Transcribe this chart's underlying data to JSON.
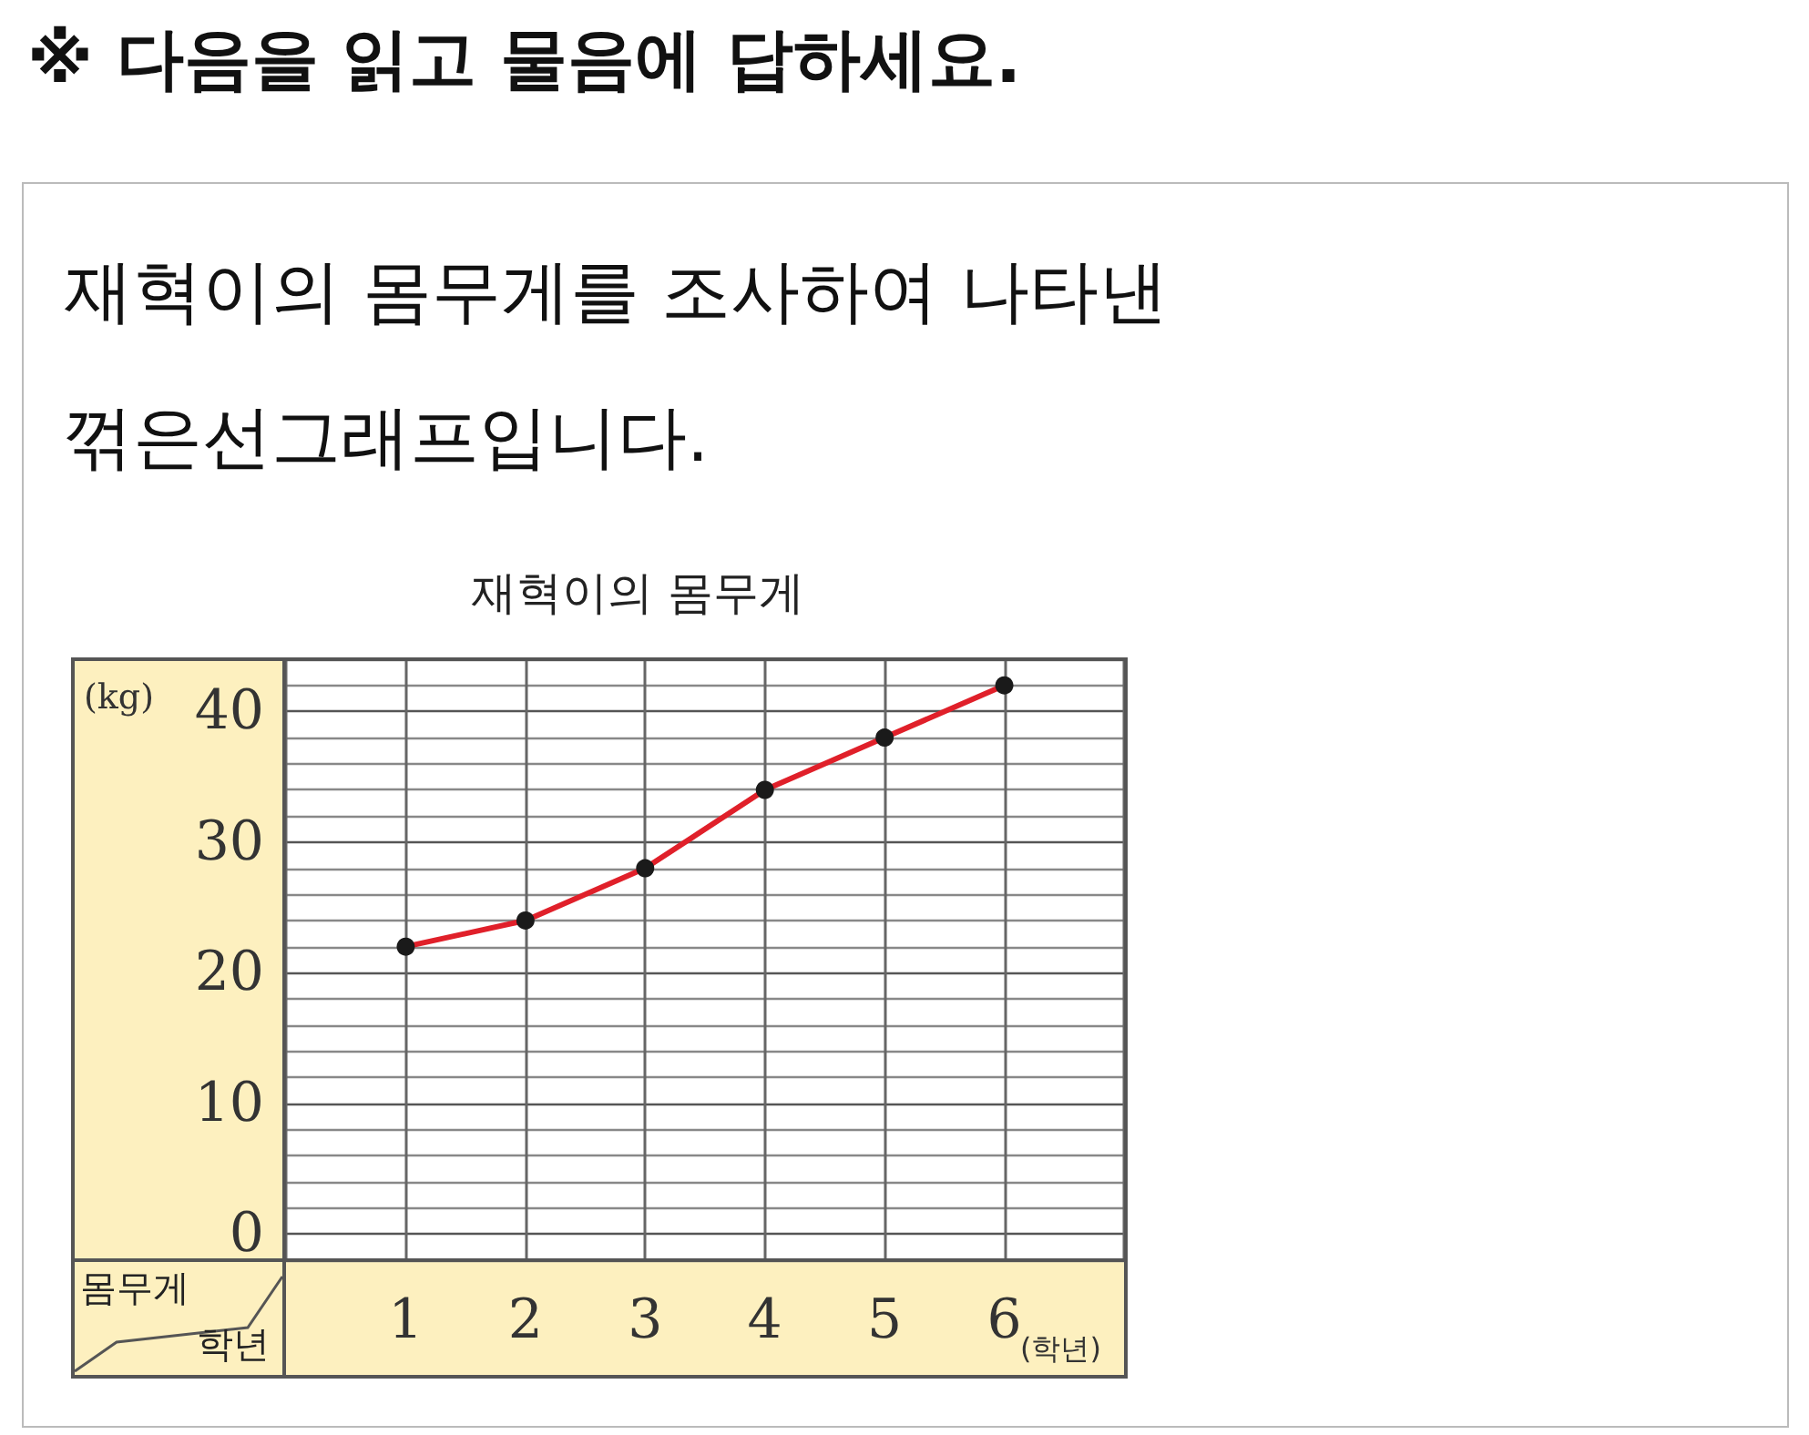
{
  "chart_data": {
    "type": "line",
    "title": "재혁이의 몸무게",
    "xlabel": "(학년)",
    "ylabel": "(kg)",
    "annotations": [
      "※ 다음을 읽고 물음에 답하세요.",
      "재혁이의 몸무게를 조사하여 나타낸 꺾은선그래프입니다.",
      "몸무게",
      "학년"
    ],
    "categories": [
      "1",
      "2",
      "3",
      "4",
      "5",
      "6"
    ],
    "series": [
      {
        "color": "#e0202a",
        "values": [
          22,
          24,
          28,
          34,
          38,
          42
        ]
      }
    ],
    "ylim": [
      -2,
      44
    ],
    "yticks": [
      {
        "value": 0,
        "label": "0"
      },
      {
        "value": 2,
        "label": null
      },
      {
        "value": 4,
        "label": null
      },
      {
        "value": 6,
        "label": null
      },
      {
        "value": 8,
        "label": null
      },
      {
        "value": 10,
        "label": "10"
      },
      {
        "value": 12,
        "label": null
      },
      {
        "value": 14,
        "label": null
      },
      {
        "value": 16,
        "label": null
      },
      {
        "value": 18,
        "label": null
      },
      {
        "value": 20,
        "label": "20"
      },
      {
        "value": 22,
        "label": null
      },
      {
        "value": 24,
        "label": null
      },
      {
        "value": 26,
        "label": null
      },
      {
        "value": 28,
        "label": null
      },
      {
        "value": 30,
        "label": "30"
      },
      {
        "value": 32,
        "label": null
      },
      {
        "value": 34,
        "label": null
      },
      {
        "value": 36,
        "label": null
      },
      {
        "value": 38,
        "label": null
      },
      {
        "value": 40,
        "label": "40"
      },
      {
        "value": 42,
        "label": null
      }
    ],
    "grid": true,
    "marker": "circle",
    "line_style": "solid"
  }
}
